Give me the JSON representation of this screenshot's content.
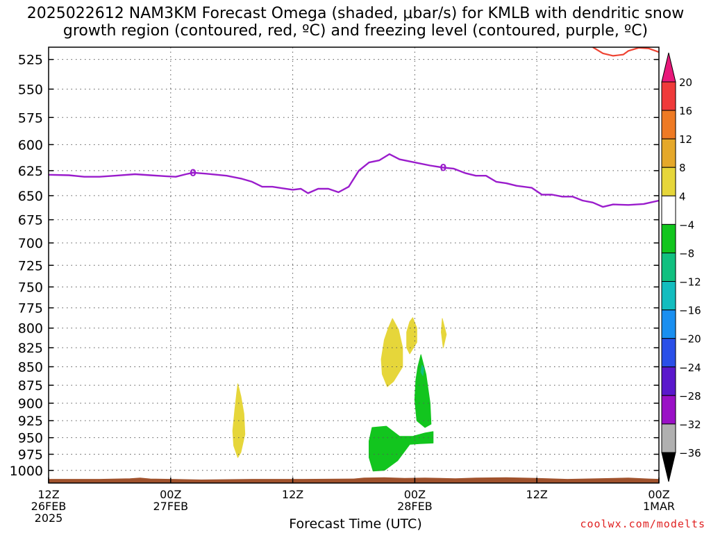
{
  "title_line1": "2025022612 NAM3KM Forecast Omega (shaded, μbar/s) for KMLB with dendritic snow",
  "title_line2": "growth region (contoured, red, ºC) and freezing level (contoured, purple, ºC)",
  "credit": "coolwx.com/modelts",
  "colors": {
    "freezing_level": "#9a1ccc",
    "dendritic": "#ee4433",
    "terrain": "#a0522d",
    "grid": "#555555"
  },
  "chart_data": {
    "type": "heatmap",
    "xlabel": "Forecast Time (UTC)",
    "x_range_hours": [
      0,
      60
    ],
    "y_range_hPa": [
      515,
      1020
    ],
    "y_scale": "pressure",
    "grid": true,
    "x_ticks": [
      {
        "hour": 0,
        "line1": "12Z",
        "line2": "26FEB",
        "line3": "2025"
      },
      {
        "hour": 12,
        "line1": "00Z",
        "line2": "27FEB",
        "line3": ""
      },
      {
        "hour": 24,
        "line1": "12Z",
        "line2": "",
        "line3": ""
      },
      {
        "hour": 36,
        "line1": "00Z",
        "line2": "28FEB",
        "line3": ""
      },
      {
        "hour": 48,
        "line1": "12Z",
        "line2": "",
        "line3": ""
      },
      {
        "hour": 60,
        "line1": "00Z",
        "line2": "1MAR",
        "line3": ""
      }
    ],
    "y_ticks": [
      525,
      550,
      575,
      600,
      625,
      650,
      675,
      700,
      725,
      750,
      775,
      800,
      825,
      850,
      875,
      900,
      925,
      950,
      975,
      1000
    ],
    "colorbar": {
      "labels": [
        "20",
        "16",
        "12",
        "8",
        "4",
        "−4",
        "−8",
        "−12",
        "−16",
        "−20",
        "−24",
        "−28",
        "−32",
        "−36"
      ],
      "bands": [
        {
          "from": 20,
          "to": 24,
          "color": "#e8187a",
          "shape": "triangle-up"
        },
        {
          "from": 16,
          "to": 20,
          "color": "#ef3a3a"
        },
        {
          "from": 12,
          "to": 16,
          "color": "#ee7a24"
        },
        {
          "from": 8,
          "to": 12,
          "color": "#e5a82a"
        },
        {
          "from": 4,
          "to": 8,
          "color": "#e6d63a"
        },
        {
          "from": -4,
          "to": 4,
          "color": "#ffffff"
        },
        {
          "from": -8,
          "to": -4,
          "color": "#12c51e"
        },
        {
          "from": -12,
          "to": -8,
          "color": "#11c080"
        },
        {
          "from": -16,
          "to": -12,
          "color": "#13bdbf"
        },
        {
          "from": -20,
          "to": -16,
          "color": "#1a8ff0"
        },
        {
          "from": -24,
          "to": -20,
          "color": "#2a4fe8"
        },
        {
          "from": -28,
          "to": -24,
          "color": "#5a18cc"
        },
        {
          "from": -32,
          "to": -28,
          "color": "#9a10c6"
        },
        {
          "from": -36,
          "to": -32,
          "color": "#b0b0b0"
        },
        {
          "from": -40,
          "to": -36,
          "color": "#000000",
          "shape": "triangle-down"
        }
      ]
    },
    "freezing_level": {
      "label": "0",
      "label_points": [
        [
          14.2,
          627
        ],
        [
          38.8,
          622
        ]
      ],
      "points": [
        [
          0,
          629
        ],
        [
          2,
          629.5
        ],
        [
          3.5,
          631
        ],
        [
          5,
          631
        ],
        [
          6.5,
          630
        ],
        [
          8.5,
          628.5
        ],
        [
          10,
          629.5
        ],
        [
          11.5,
          630.5
        ],
        [
          12.5,
          631
        ],
        [
          13.5,
          628.5
        ],
        [
          14.2,
          627
        ],
        [
          15.5,
          628
        ],
        [
          17.5,
          630
        ],
        [
          19,
          633
        ],
        [
          20,
          636
        ],
        [
          21,
          641
        ],
        [
          22,
          641
        ],
        [
          23,
          642.5
        ],
        [
          24,
          644
        ],
        [
          24.8,
          643
        ],
        [
          25.5,
          647.5
        ],
        [
          26.5,
          643
        ],
        [
          27.5,
          643
        ],
        [
          28.5,
          646.5
        ],
        [
          29.5,
          641
        ],
        [
          30.5,
          625
        ],
        [
          31.5,
          617
        ],
        [
          32.5,
          615
        ],
        [
          33.5,
          609
        ],
        [
          34.5,
          614
        ],
        [
          36,
          617
        ],
        [
          37.5,
          620
        ],
        [
          38.8,
          622
        ],
        [
          39.8,
          623
        ],
        [
          41,
          627.5
        ],
        [
          42,
          630
        ],
        [
          43,
          630
        ],
        [
          44,
          636
        ],
        [
          45,
          637.5
        ],
        [
          46,
          640
        ],
        [
          47.5,
          642
        ],
        [
          48.5,
          649
        ],
        [
          49.5,
          649
        ],
        [
          50.5,
          651
        ],
        [
          51.5,
          651
        ],
        [
          52.5,
          655
        ],
        [
          53.5,
          657
        ],
        [
          54.5,
          661.5
        ],
        [
          55.5,
          659
        ],
        [
          57,
          659.5
        ],
        [
          58.5,
          658.5
        ],
        [
          60,
          655
        ]
      ]
    },
    "dendritic_contour": {
      "points": [
        [
          53.5,
          515
        ],
        [
          54.5,
          520
        ],
        [
          55.5,
          522
        ],
        [
          56.5,
          521
        ],
        [
          57,
          518
        ],
        [
          58,
          515.5
        ],
        [
          59,
          516
        ],
        [
          60,
          519
        ]
      ]
    },
    "omega_regions": [
      {
        "band": "4 to 8",
        "color": "#e6d63a",
        "points": [
          [
            18.6,
            873
          ],
          [
            18.9,
            890
          ],
          [
            19.2,
            915
          ],
          [
            19.3,
            945
          ],
          [
            18.9,
            972
          ],
          [
            18.6,
            980
          ],
          [
            18.2,
            962
          ],
          [
            18.1,
            940
          ],
          [
            18.3,
            910
          ],
          [
            18.5,
            885
          ]
        ]
      },
      {
        "band": "4 to 8",
        "color": "#e6d63a",
        "points": [
          [
            33.8,
            788
          ],
          [
            34.4,
            802
          ],
          [
            34.8,
            825
          ],
          [
            34.8,
            850
          ],
          [
            33.9,
            870
          ],
          [
            33.3,
            877
          ],
          [
            32.8,
            860
          ],
          [
            32.7,
            840
          ],
          [
            33.0,
            815
          ],
          [
            33.4,
            800
          ]
        ]
      },
      {
        "band": "4 to 8",
        "color": "#e6d63a",
        "points": [
          [
            35.8,
            787
          ],
          [
            36.2,
            800
          ],
          [
            36.2,
            818
          ],
          [
            35.5,
            833
          ],
          [
            35.2,
            825
          ],
          [
            35.2,
            805
          ],
          [
            35.5,
            792
          ]
        ]
      },
      {
        "band": "4 to 8",
        "color": "#e6d63a",
        "points": [
          [
            38.7,
            788
          ],
          [
            39.1,
            808
          ],
          [
            38.8,
            825
          ],
          [
            38.6,
            805
          ]
        ]
      },
      {
        "band": "-8 to -4",
        "color": "#12c51e",
        "points": [
          [
            36.6,
            834
          ],
          [
            37.1,
            860
          ],
          [
            37.5,
            900
          ],
          [
            37.6,
            930
          ],
          [
            37.0,
            935
          ],
          [
            36.2,
            925
          ],
          [
            36.0,
            895
          ],
          [
            36.1,
            868
          ],
          [
            36.3,
            850
          ]
        ]
      },
      {
        "band": "-8 to -4",
        "color": "#12c51e",
        "points": [
          [
            31.8,
            935
          ],
          [
            33.2,
            933
          ],
          [
            33.8,
            940
          ],
          [
            34.5,
            948
          ],
          [
            35.8,
            948
          ],
          [
            37.0,
            943
          ],
          [
            37.8,
            941
          ],
          [
            37.8,
            958
          ],
          [
            36.5,
            959
          ],
          [
            35.5,
            960
          ],
          [
            34.3,
            985
          ],
          [
            33.0,
            1000
          ],
          [
            31.9,
            1001
          ],
          [
            31.5,
            980
          ],
          [
            31.5,
            955
          ]
        ]
      },
      {
        "band": "-12 to -8",
        "color": "#11c080",
        "points": [
          [
            36.7,
            848
          ],
          [
            36.9,
            852
          ],
          [
            36.8,
            862
          ],
          [
            36.6,
            857
          ]
        ]
      }
    ],
    "terrain": {
      "points": [
        [
          0,
          1014
        ],
        [
          5,
          1014
        ],
        [
          8,
          1013
        ],
        [
          9,
          1012
        ],
        [
          10,
          1013.5
        ],
        [
          12,
          1014
        ],
        [
          15,
          1015
        ],
        [
          20,
          1014
        ],
        [
          25,
          1014
        ],
        [
          30,
          1013.5
        ],
        [
          31,
          1012
        ],
        [
          33,
          1011.5
        ],
        [
          35,
          1012.5
        ],
        [
          37,
          1012
        ],
        [
          40,
          1013
        ],
        [
          42,
          1012
        ],
        [
          45,
          1011.5
        ],
        [
          48,
          1012.5
        ],
        [
          51,
          1014
        ],
        [
          54,
          1013
        ],
        [
          57,
          1012
        ],
        [
          59,
          1013.5
        ],
        [
          60,
          1014
        ]
      ]
    }
  }
}
